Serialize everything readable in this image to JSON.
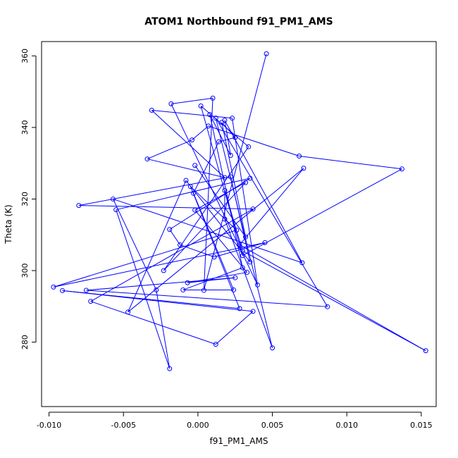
{
  "chart_data": {
    "type": "scatter",
    "mode": "lines+markers",
    "title": "ATOM1 Northbound f91_PM1_AMS",
    "xlabel": "f91_PM1_AMS",
    "ylabel": "Theta (K)",
    "xlim": [
      -0.0105,
      0.016
    ],
    "ylim": [
      262,
      364
    ],
    "xticks": [
      -0.01,
      -0.005,
      0.0,
      0.005,
      0.01,
      0.015
    ],
    "xtick_labels": [
      "-0.010",
      "-0.005",
      "0.000",
      "0.005",
      "0.010",
      "0.015"
    ],
    "yticks": [
      280,
      300,
      320,
      340,
      360
    ],
    "ytick_labels": [
      "280",
      "300",
      "320",
      "340",
      "360"
    ],
    "grid": false,
    "color": "#0000ff",
    "series": [
      {
        "points": [
          [
            0.0046,
            360.6
          ],
          [
            0.0004,
            294.5
          ],
          [
            0.001,
            348.2
          ],
          [
            -0.0018,
            346.6
          ],
          [
            0.004,
            296.0
          ],
          [
            0.0023,
            342.6
          ],
          [
            -0.0031,
            344.8
          ],
          [
            0.0018,
            326.0
          ],
          [
            -0.0034,
            331.2
          ],
          [
            -0.0004,
            336.5
          ],
          [
            0.0007,
            340.4
          ],
          [
            0.0068,
            332.0
          ],
          [
            0.0137,
            328.4
          ],
          [
            0.003,
            304.2
          ],
          [
            0.0002,
            346.0
          ],
          [
            0.0034,
            334.6
          ],
          [
            -0.0023,
            300.0
          ],
          [
            0.0032,
            324.6
          ],
          [
            -0.0002,
            316.9
          ],
          [
            0.0033,
            299.5
          ],
          [
            -0.0007,
            296.6
          ],
          [
            0.0025,
            298.0
          ],
          [
            -0.0075,
            294.5
          ],
          [
            0.0087,
            289.9
          ],
          [
            0.0012,
            342.6
          ],
          [
            0.005,
            278.4
          ],
          [
            0.0018,
            314.4
          ],
          [
            0.0018,
            322.4
          ],
          [
            0.003,
            305.5
          ],
          [
            0.0153,
            277.6
          ],
          [
            0.0028,
            307.2
          ],
          [
            0.0071,
            328.6
          ],
          [
            -0.0047,
            288.4
          ],
          [
            -0.0008,
            325.2
          ],
          [
            0.0035,
            302.4
          ],
          [
            0.0022,
            326.2
          ],
          [
            -0.008,
            318.2
          ],
          [
            0.0037,
            317.2
          ],
          [
            -0.0072,
            291.4
          ],
          [
            0.0012,
            279.4
          ],
          [
            0.0037,
            288.6
          ],
          [
            -0.0091,
            294.4
          ],
          [
            0.0028,
            289.4
          ],
          [
            -0.0005,
            323.5
          ],
          [
            0.0026,
            311.3
          ],
          [
            -0.0097,
            295.4
          ],
          [
            0.0045,
            307.8
          ],
          [
            0.0011,
            303.8
          ],
          [
            -0.0012,
            307.2
          ],
          [
            -0.0019,
            311.5
          ],
          [
            0.0035,
            325.8
          ],
          [
            -0.0055,
            317.0
          ],
          [
            -0.0019,
            272.6
          ],
          [
            -0.0028,
            294.6
          ],
          [
            -0.0057,
            320.0
          ],
          [
            0.007,
            302.2
          ],
          [
            0.0018,
            342.0
          ],
          [
            0.0022,
            332.2
          ],
          [
            0.0008,
            343.6
          ],
          [
            0.003,
            300.8
          ],
          [
            -0.001,
            294.6
          ],
          [
            0.0024,
            294.6
          ],
          [
            -0.0003,
            321.6
          ],
          [
            0.0014,
            336.0
          ],
          [
            0.0025,
            337.2
          ],
          [
            0.0016,
            341.4
          ],
          [
            0.0032,
            309.4
          ],
          [
            -0.0002,
            329.4
          ]
        ]
      }
    ]
  }
}
